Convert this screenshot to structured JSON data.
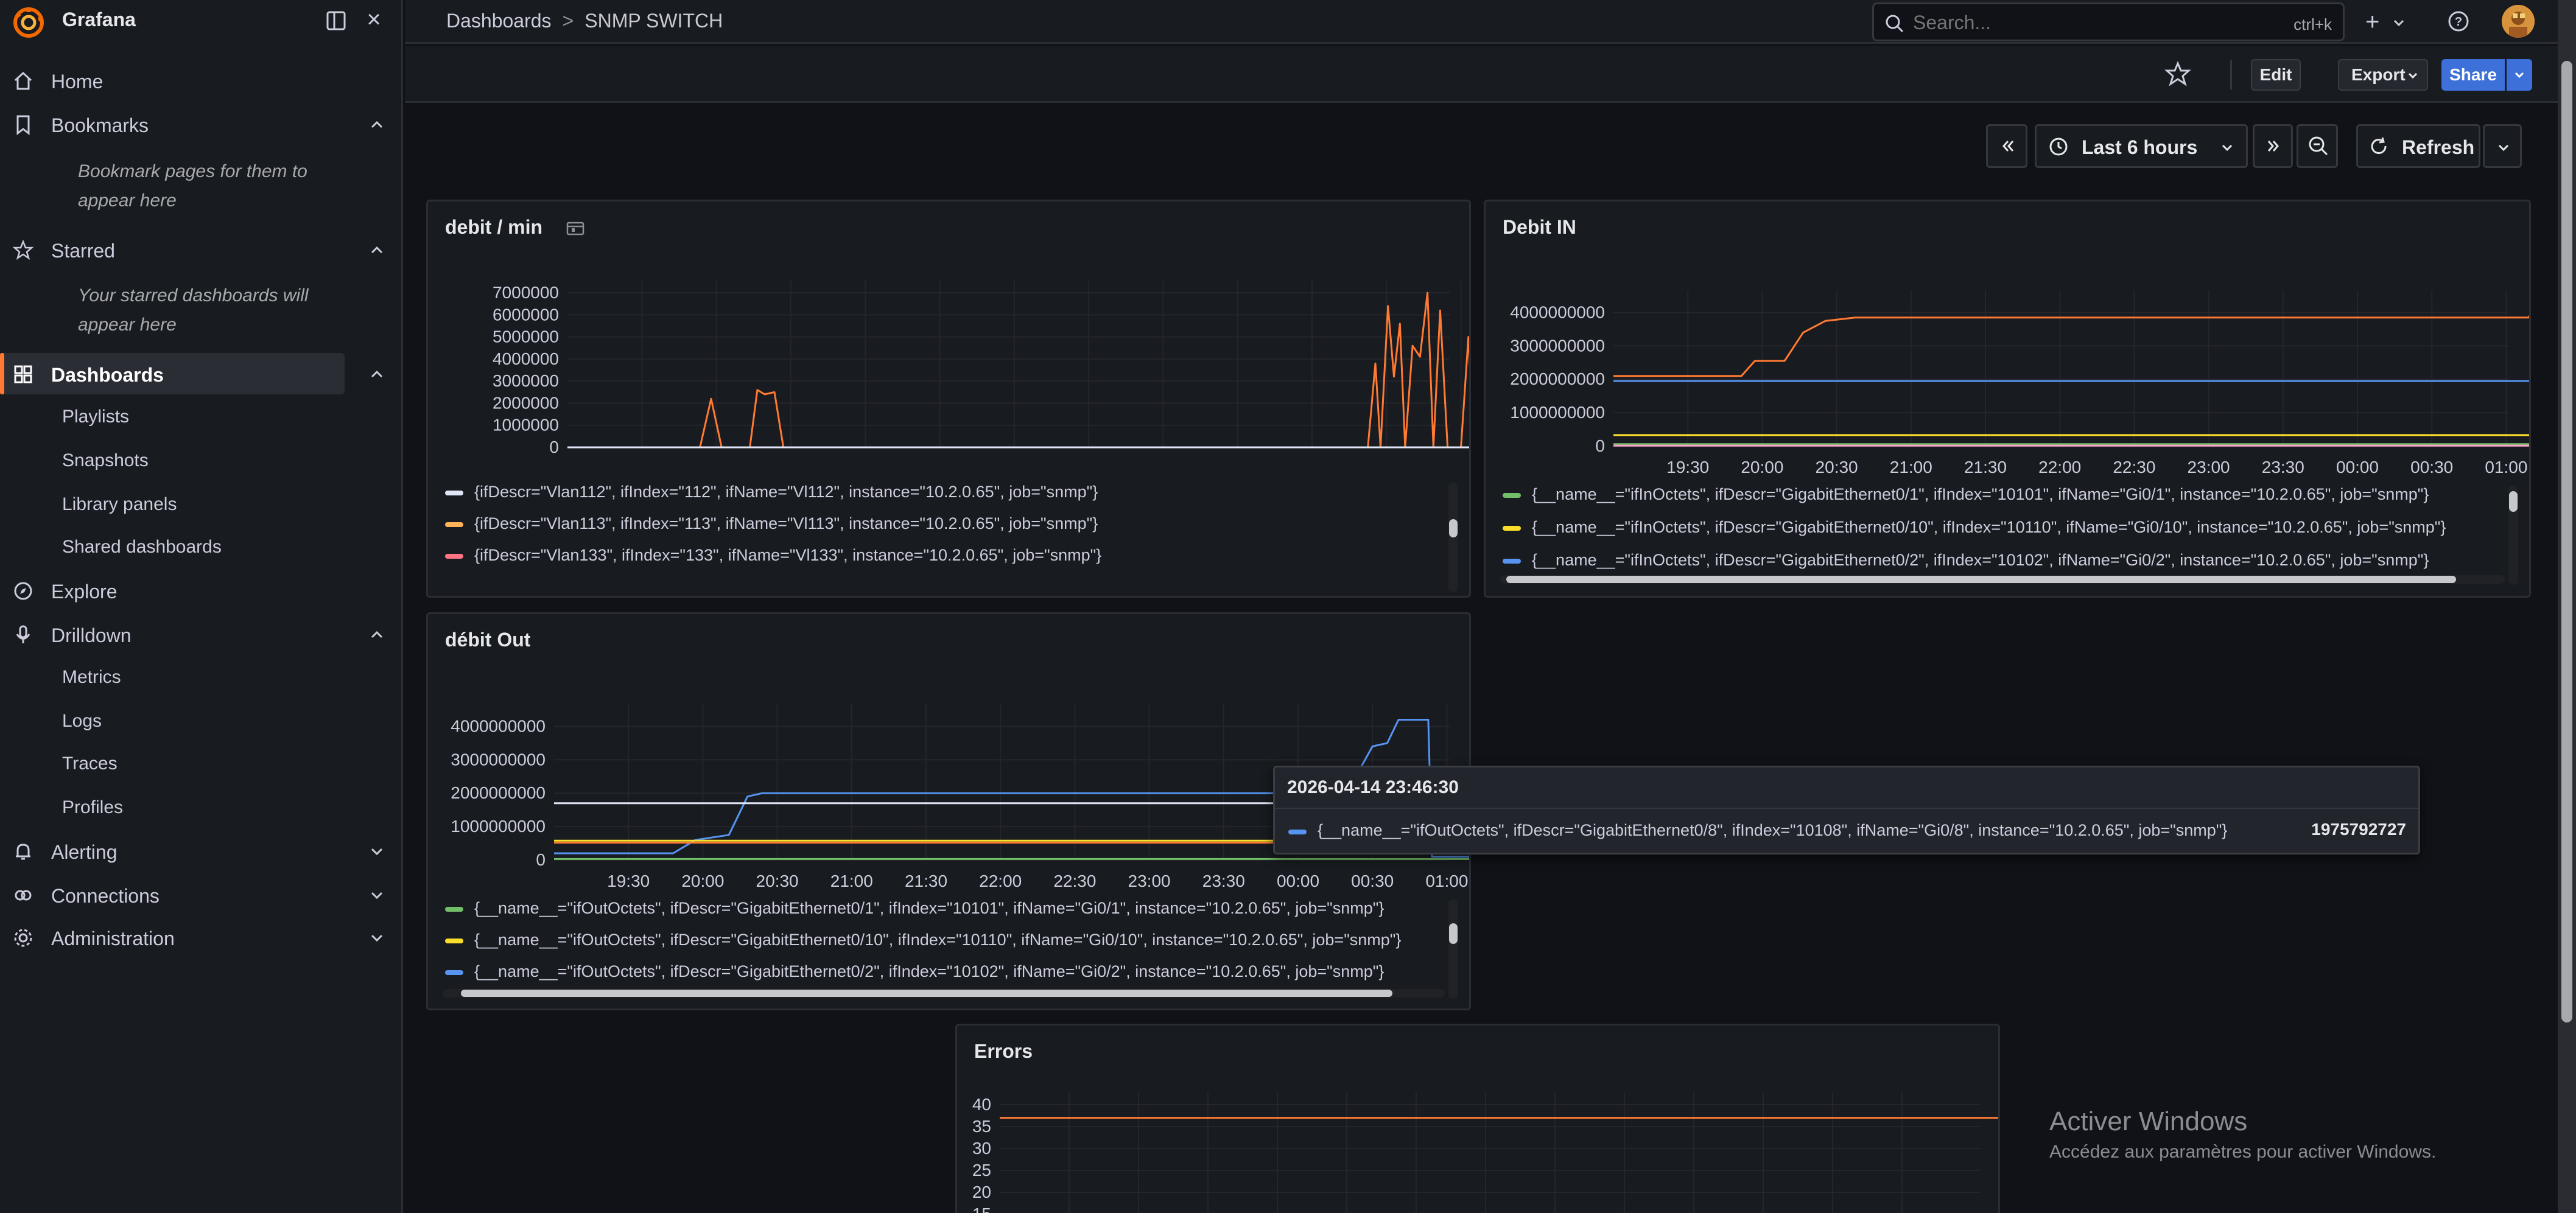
{
  "app": {
    "name": "Grafana"
  },
  "sidebar": {
    "items": [
      {
        "label": "Home"
      },
      {
        "label": "Bookmarks"
      },
      {
        "label": "Starred"
      },
      {
        "label": "Dashboards"
      },
      {
        "label": "Explore"
      },
      {
        "label": "Drilldown"
      },
      {
        "label": "Alerting"
      },
      {
        "label": "Connections"
      },
      {
        "label": "Administration"
      }
    ],
    "bookmarks_note": "Bookmark pages for them to appear here",
    "starred_note": "Your starred dashboards will appear here",
    "dashboards_sub": [
      "Playlists",
      "Snapshots",
      "Library panels",
      "Shared dashboards"
    ],
    "drilldown_sub": [
      "Metrics",
      "Logs",
      "Traces",
      "Profiles"
    ]
  },
  "topbar": {
    "breadcrumb": [
      "Dashboards",
      "SNMP SWITCH"
    ],
    "breadcrumb_sep": ">",
    "search_placeholder": "Search...",
    "search_shortcut": "ctrl+k",
    "add_label": "+"
  },
  "toolbar": {
    "edit": "Edit",
    "export": "Export",
    "share": "Share"
  },
  "time": {
    "range": "Last 6 hours",
    "refresh": "Refresh"
  },
  "accent_color": "#ff7a33",
  "x_ticks": [
    "19:30",
    "20:00",
    "20:30",
    "21:00",
    "21:30",
    "22:00",
    "22:30",
    "23:00",
    "23:30",
    "00:00",
    "00:30",
    "01:00"
  ],
  "panels": {
    "debit_min": {
      "title": "debit / min",
      "legend": [
        {
          "text": "{ifDescr=\"Vlan112\", ifIndex=\"112\", ifName=\"Vl112\", instance=\"10.2.0.65\", job=\"snmp\"}",
          "color": "#e0e6f8"
        },
        {
          "text": "{ifDescr=\"Vlan113\", ifIndex=\"113\", ifName=\"Vl113\", instance=\"10.2.0.65\", job=\"snmp\"}",
          "color": "#ffb357"
        },
        {
          "text": "{ifDescr=\"Vlan133\", ifIndex=\"133\", ifName=\"Vl133\", instance=\"10.2.0.65\", job=\"snmp\"}",
          "color": "#ff7383"
        }
      ]
    },
    "debit_in": {
      "title": "Debit IN",
      "legend": [
        {
          "text": "{__name__=\"ifInOctets\", ifDescr=\"GigabitEthernet0/1\", ifIndex=\"10101\", ifName=\"Gi0/1\", instance=\"10.2.0.65\", job=\"snmp\"}",
          "color": "#73bf69"
        },
        {
          "text": "{__name__=\"ifInOctets\", ifDescr=\"GigabitEthernet0/10\", ifIndex=\"10110\", ifName=\"Gi0/10\", instance=\"10.2.0.65\", job=\"snmp\"}",
          "color": "#fade2a"
        },
        {
          "text": "{__name__=\"ifInOctets\", ifDescr=\"GigabitEthernet0/2\", ifIndex=\"10102\", ifName=\"Gi0/2\", instance=\"10.2.0.65\", job=\"snmp\"}",
          "color": "#5794f2"
        }
      ]
    },
    "debit_out": {
      "title": "débit Out",
      "legend": [
        {
          "text": "{__name__=\"ifOutOctets\", ifDescr=\"GigabitEthernet0/1\", ifIndex=\"10101\", ifName=\"Gi0/1\", instance=\"10.2.0.65\", job=\"snmp\"}",
          "color": "#73bf69"
        },
        {
          "text": "{__name__=\"ifOutOctets\", ifDescr=\"GigabitEthernet0/10\", ifIndex=\"10110\", ifName=\"Gi0/10\", instance=\"10.2.0.65\", job=\"snmp\"}",
          "color": "#fade2a"
        },
        {
          "text": "{__name__=\"ifOutOctets\", ifDescr=\"GigabitEthernet0/2\", ifIndex=\"10102\", ifName=\"Gi0/2\", instance=\"10.2.0.65\", job=\"snmp\"}",
          "color": "#5794f2"
        }
      ]
    },
    "errors": {
      "title": "Errors"
    }
  },
  "tooltip": {
    "time": "2026-04-14 23:46:30",
    "series": "{__name__=\"ifOutOctets\", ifDescr=\"GigabitEthernet0/8\", ifIndex=\"10108\", ifName=\"Gi0/8\", instance=\"10.2.0.65\", job=\"snmp\"}",
    "value": "1975792727",
    "color": "#5794f2"
  },
  "watermark": {
    "title": "Activer Windows",
    "subtitle": "Accédez aux paramètres pour activer Windows."
  },
  "chart_data": [
    {
      "type": "line",
      "title": "debit / min",
      "x": [
        "19:30",
        "20:00",
        "20:30",
        "21:00",
        "21:30",
        "22:00",
        "22:30",
        "23:00",
        "23:30",
        "00:00",
        "00:30",
        "01:00"
      ],
      "y_ticks": [
        "7000000",
        "6000000",
        "5000000",
        "4000000",
        "3000000",
        "2000000",
        "1000000",
        "0"
      ],
      "ylim": [
        0,
        7000000
      ],
      "series": [
        {
          "name": "{ifDescr=\"Vlan113\", ifIndex=\"113\", ifName=\"Vl113\", instance=\"10.2.0.65\", job=\"snmp\"}",
          "color": "#ff7a33",
          "points": [
            [
              0,
              0
            ],
            [
              1.78,
              0
            ],
            [
              1.93,
              2200000
            ],
            [
              2.07,
              0
            ],
            [
              2.45,
              0
            ],
            [
              2.55,
              2600000
            ],
            [
              2.65,
              2400000
            ],
            [
              2.78,
              2500000
            ],
            [
              2.9,
              0
            ],
            [
              10.75,
              0
            ],
            [
              10.85,
              3800000
            ],
            [
              10.92,
              0
            ],
            [
              11.02,
              6400000
            ],
            [
              11.1,
              3200000
            ],
            [
              11.18,
              5600000
            ],
            [
              11.25,
              0
            ],
            [
              11.35,
              4600000
            ],
            [
              11.45,
              4100000
            ],
            [
              11.55,
              7000000
            ],
            [
              11.63,
              0
            ],
            [
              11.72,
              6200000
            ],
            [
              11.82,
              0
            ],
            [
              12.0,
              0
            ],
            [
              12.1,
              5000000
            ],
            [
              12.18,
              0
            ],
            [
              13.8,
              0
            ],
            [
              13.95,
              400000
            ],
            [
              14.0,
              200000
            ]
          ]
        },
        {
          "name": "{ifDescr=\"Vlan112\", ifIndex=\"112\", ifName=\"Vl112\", instance=\"10.2.0.65\", job=\"snmp\"}",
          "color": "#e0e6f8",
          "points": [
            [
              0,
              0
            ],
            [
              14,
              0
            ]
          ]
        }
      ]
    },
    {
      "type": "line",
      "title": "Debit IN",
      "x": [
        "19:30",
        "20:00",
        "20:30",
        "21:00",
        "21:30",
        "22:00",
        "22:30",
        "23:00",
        "23:30",
        "00:00",
        "00:30",
        "01:00"
      ],
      "y_ticks": [
        "4000000000",
        "3000000000",
        "2000000000",
        "1000000000",
        "0"
      ],
      "ylim": [
        0,
        4300000000
      ],
      "series": [
        {
          "name": "orange",
          "color": "#ff7a33",
          "points": [
            [
              0,
              2100000000
            ],
            [
              1.72,
              2100000000
            ],
            [
              1.9,
              2550000000
            ],
            [
              2.3,
              2550000000
            ],
            [
              2.55,
              3400000000
            ],
            [
              2.85,
              3750000000
            ],
            [
              3.25,
              3850000000
            ],
            [
              4.2,
              3850000000
            ],
            [
              12.3,
              3850000000
            ],
            [
              12.4,
              4200000000
            ],
            [
              12.55,
              4200000000
            ],
            [
              12.6,
              2100000000
            ],
            [
              12.68,
              100000000
            ],
            [
              12.9,
              600000000
            ],
            [
              13.05,
              1300000000
            ],
            [
              13.3,
              1550000000
            ],
            [
              13.55,
              1900000000
            ],
            [
              13.8,
              2000000000
            ],
            [
              14.5,
              2000000000
            ]
          ]
        },
        {
          "name": "{__name__=\"ifInOctets\", ifDescr=\"GigabitEthernet0/2\", ifIndex=\"10102\", ifName=\"Gi0/2\", instance=\"10.2.0.65\", job=\"snmp\"}",
          "color": "#5794f2",
          "points": [
            [
              0,
              1950000000
            ],
            [
              14.5,
              1950000000
            ]
          ]
        },
        {
          "name": "{__name__=\"ifInOctets\", ifDescr=\"GigabitEthernet0/10\", ifIndex=\"10110\", ifName=\"Gi0/10\", instance=\"10.2.0.65\", job=\"snmp\"}",
          "color": "#fade2a",
          "points": [
            [
              0,
              330000000
            ],
            [
              14.5,
              330000000
            ]
          ]
        },
        {
          "name": "{__name__=\"ifInOctets\", ifDescr=\"GigabitEthernet0/1\", ifIndex=\"10101\", ifName=\"Gi0/1\", instance=\"10.2.0.65\", job=\"snmp\"}",
          "color": "#73bf69",
          "points": [
            [
              0,
              60000000
            ],
            [
              14.5,
              60000000
            ]
          ]
        },
        {
          "name": "pink",
          "color": "#ff9fd0",
          "points": [
            [
              0,
              15000000
            ],
            [
              14.5,
              15000000
            ]
          ]
        }
      ]
    },
    {
      "type": "line",
      "title": "débit Out",
      "x": [
        "19:30",
        "20:00",
        "20:30",
        "21:00",
        "21:30",
        "22:00",
        "22:30",
        "23:00",
        "23:30",
        "00:00",
        "00:30",
        "01:00"
      ],
      "y_ticks": [
        "4000000000",
        "3000000000",
        "2000000000",
        "1000000000",
        "0"
      ],
      "ylim": [
        0,
        4300000000
      ],
      "series": [
        {
          "name": "{__name__=\"ifOutOctets\", ifDescr=\"GigabitEthernet0/2\", ifIndex=\"10102\", ifName=\"Gi0/2\", instance=\"10.2.0.65\", job=\"snmp\"}",
          "color": "#5794f2",
          "points": [
            [
              0,
              200000000
            ],
            [
              1.6,
              200000000
            ],
            [
              1.9,
              600000000
            ],
            [
              2.35,
              750000000
            ],
            [
              2.6,
              1900000000
            ],
            [
              2.8,
              2000000000
            ],
            [
              10.2,
              2000000000
            ],
            [
              10.6,
              2100000000
            ],
            [
              10.8,
              2600000000
            ],
            [
              11.0,
              3400000000
            ],
            [
              11.2,
              3500000000
            ],
            [
              11.35,
              4200000000
            ],
            [
              11.75,
              4200000000
            ],
            [
              11.8,
              100000000
            ],
            [
              14.5,
              100000000
            ]
          ]
        },
        {
          "name": "white",
          "color": "#e0e6f8",
          "points": [
            [
              0,
              1700000000
            ],
            [
              14.5,
              1700000000
            ]
          ]
        },
        {
          "name": "{__name__=\"ifOutOctets\", ifDescr=\"GigabitEthernet0/10\", ifIndex=\"10110\", ifName=\"Gi0/10\", instance=\"10.2.0.65\", job=\"snmp\"}",
          "color": "#fade2a",
          "points": [
            [
              0,
              580000000
            ],
            [
              14.5,
              580000000
            ]
          ]
        },
        {
          "name": "orange",
          "color": "#ff7a33",
          "points": [
            [
              0,
              520000000
            ],
            [
              14.5,
              520000000
            ]
          ]
        },
        {
          "name": "{__name__=\"ifOutOctets\", ifDescr=\"GigabitEthernet0/1\", ifIndex=\"10101\", ifName=\"Gi0/1\", instance=\"10.2.0.65\", job=\"snmp\"}",
          "color": "#73bf69",
          "points": [
            [
              0,
              30000000
            ],
            [
              14.5,
              30000000
            ]
          ]
        }
      ]
    },
    {
      "type": "line",
      "title": "Errors",
      "y_ticks": [
        "40",
        "35",
        "30",
        "25",
        "20",
        "15"
      ],
      "ylim": [
        15,
        40
      ],
      "series": [
        {
          "name": "orange",
          "color": "#ff7a33",
          "points": [
            [
              0,
              37
            ],
            [
              14.5,
              37
            ]
          ]
        }
      ]
    }
  ]
}
